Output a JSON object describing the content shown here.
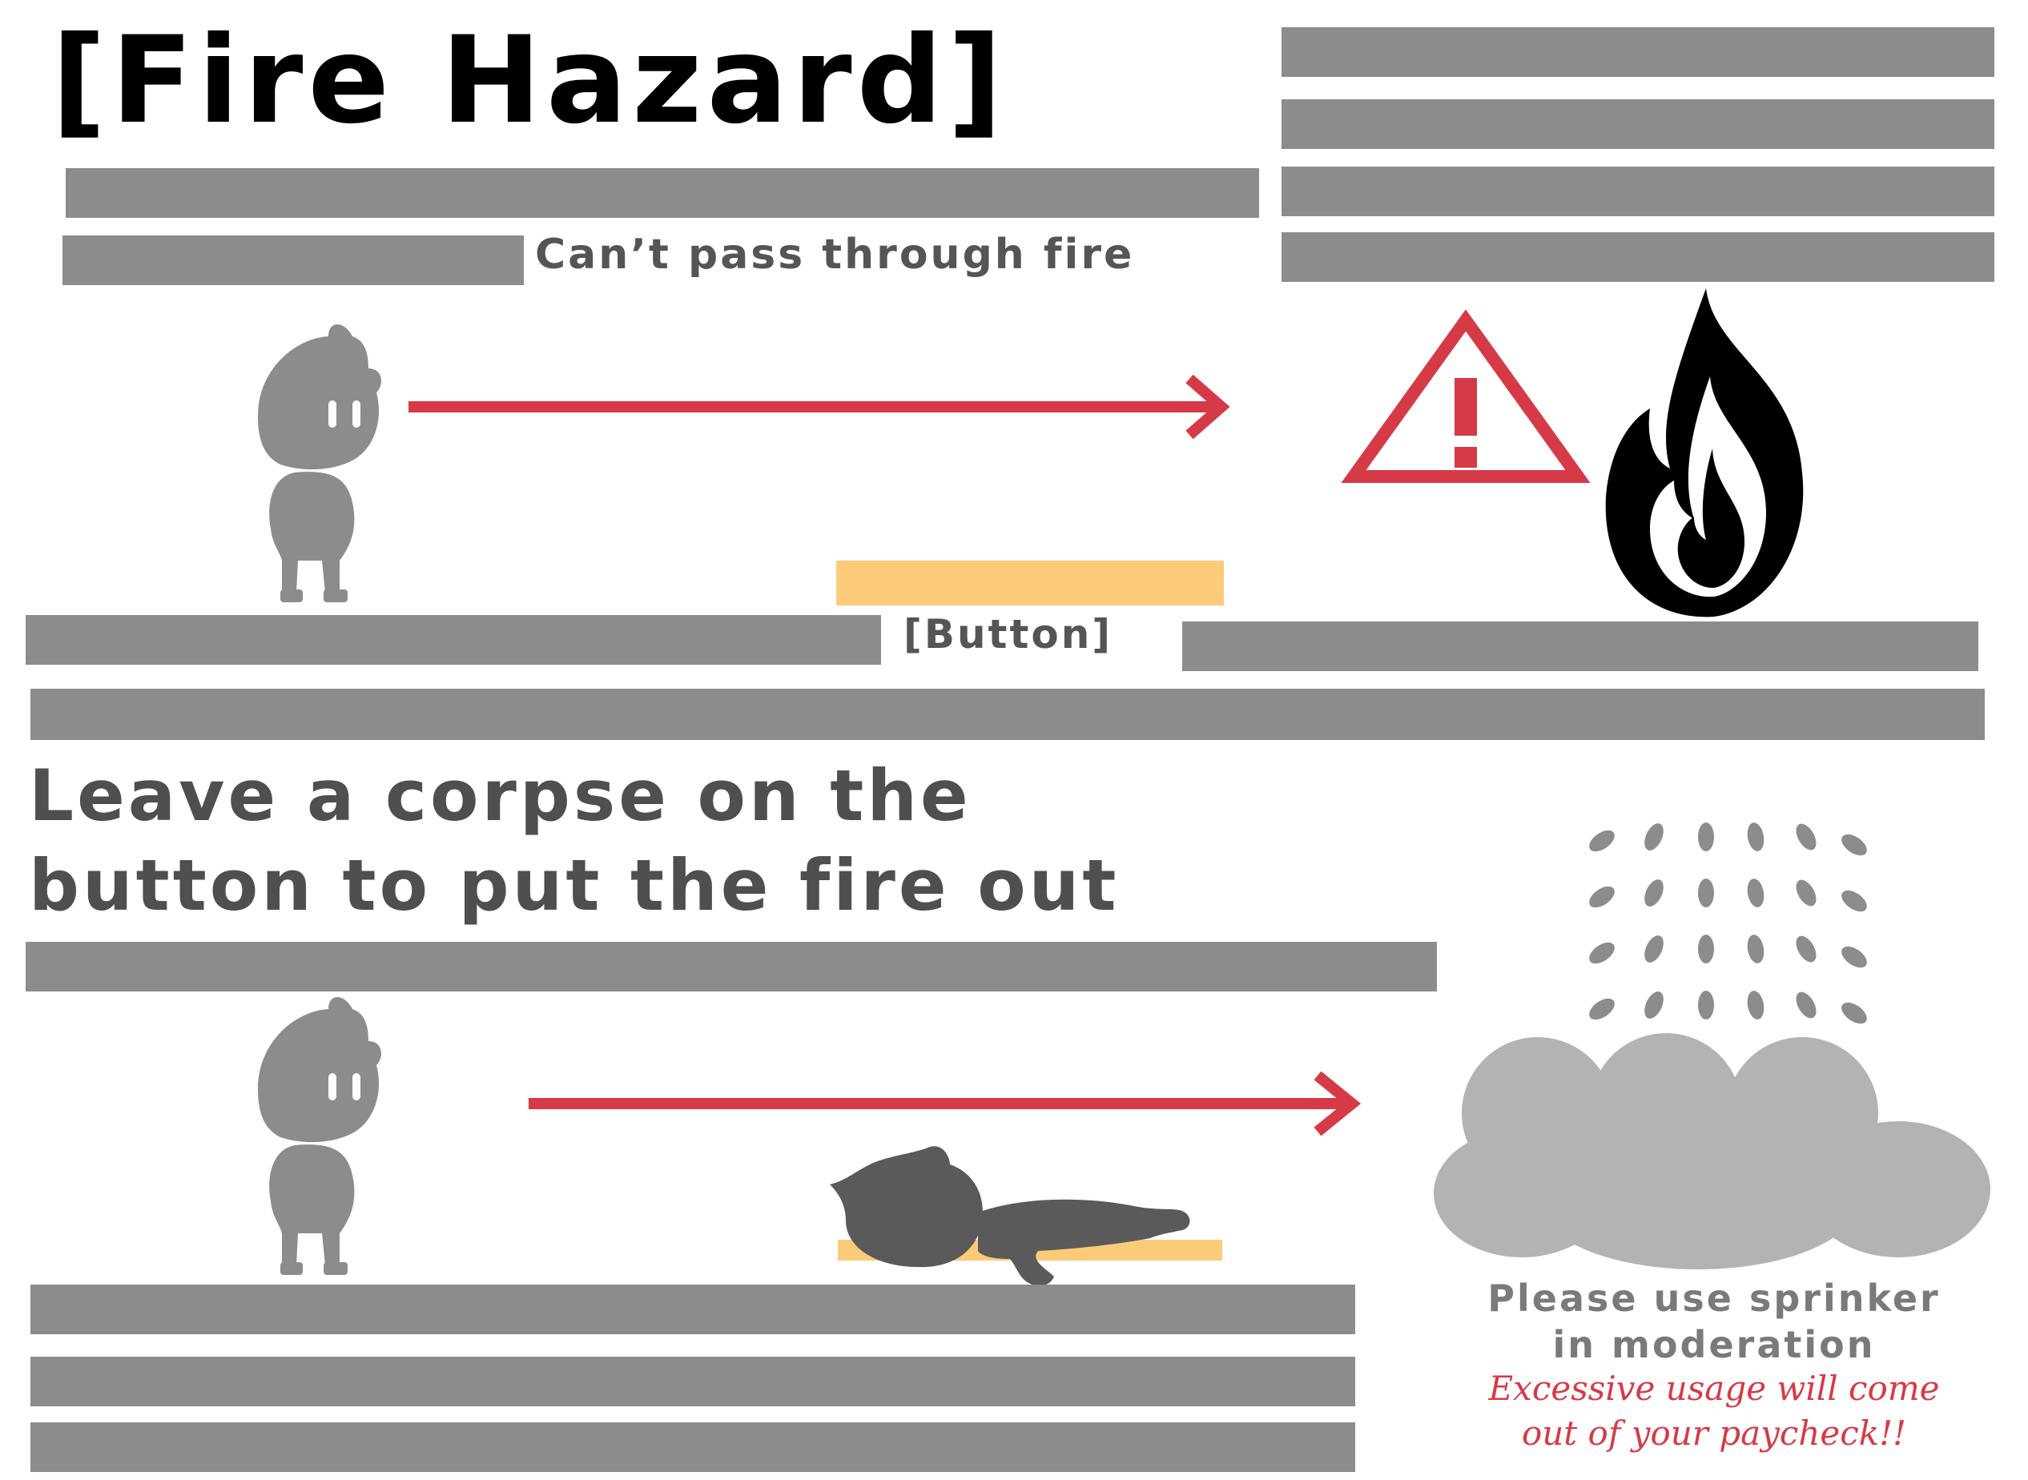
{
  "title": "[Fire Hazard]",
  "subtitle": "Can’t pass through fire",
  "button_label": "[Button]",
  "heading": {
    "line1": "Leave a corpse on the",
    "line2": "button to put the fire out"
  },
  "note": {
    "line1": "Please use sprinker",
    "line2": "in moderation"
  },
  "warning": {
    "line1": "Excessive usage will come",
    "line2": "out of your paycheck!!"
  },
  "warning_sign_glyph": "!",
  "icons": [
    "character-icon",
    "arrow-right-icon",
    "warning-triangle-icon",
    "flame-icon",
    "corpse-icon",
    "water-drops-icon",
    "cloud-icon"
  ],
  "colors": {
    "platform": "#8c8c8c",
    "button_plate": "#fccb79",
    "arrow": "#d63a46",
    "character": "#8c8c8c",
    "corpse": "#5a5a5a",
    "cloud": "#b3b3b3",
    "heading": "#4f4f4f"
  }
}
